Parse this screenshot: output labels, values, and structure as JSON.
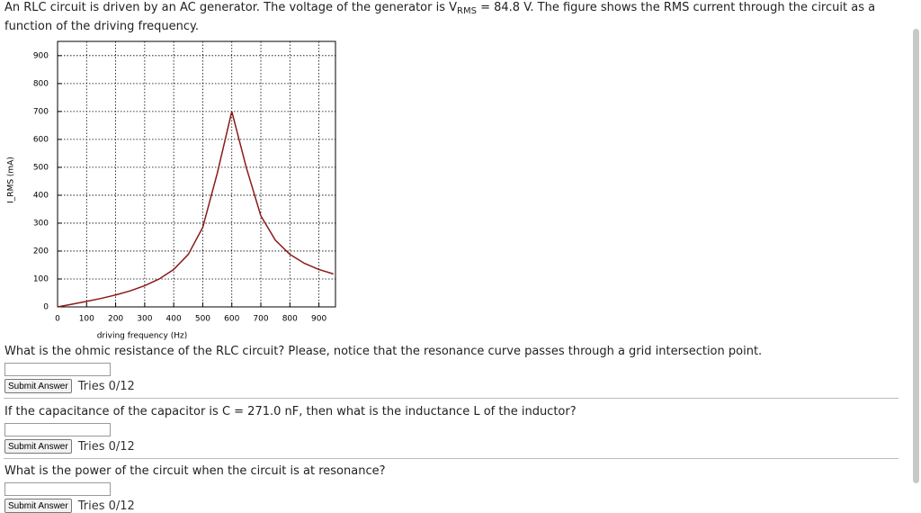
{
  "intro": {
    "before": "An RLC circuit is driven by an AC generator. The voltage of the generator is V",
    "subscript": "RMS",
    "after": " = 84.8 V. The figure shows the RMS current through the circuit as a function of the driving frequency."
  },
  "chart_data": {
    "type": "line",
    "xlabel": "driving frequency (Hz)",
    "ylabel": "I_RMS (mA)",
    "x": [
      0,
      50,
      100,
      150,
      200,
      250,
      300,
      350,
      400,
      450,
      500,
      550,
      600,
      650,
      700,
      750,
      800,
      850,
      900,
      950
    ],
    "values": [
      0,
      9.6,
      19.6,
      30.4,
      42.8,
      57.4,
      76,
      100,
      134,
      188,
      285,
      479,
      700,
      499,
      326,
      239,
      188,
      156,
      134,
      118
    ],
    "color": "#8b1a1a",
    "xlim": [
      0,
      957
    ],
    "ylim": [
      0,
      951
    ],
    "xticks": [
      0,
      100,
      200,
      300,
      400,
      500,
      600,
      700,
      800,
      900
    ],
    "yticks": [
      0,
      100,
      200,
      300,
      400,
      500,
      600,
      700,
      800,
      900
    ],
    "grid": true
  },
  "questions": [
    {
      "text": "What is the ohmic resistance of the RLC circuit? Please, notice that the resonance curve passes through a grid intersection point.",
      "button": "Submit Answer",
      "tries": "Tries 0/12"
    },
    {
      "text": "If the capacitance of the capacitor is C = 271.0 nF, then what is the inductance L of the inductor?",
      "button": "Submit Answer",
      "tries": "Tries 0/12"
    },
    {
      "text": "What is the power of the circuit when the circuit is at resonance?",
      "button": "Submit Answer",
      "tries": "Tries 0/12"
    }
  ]
}
